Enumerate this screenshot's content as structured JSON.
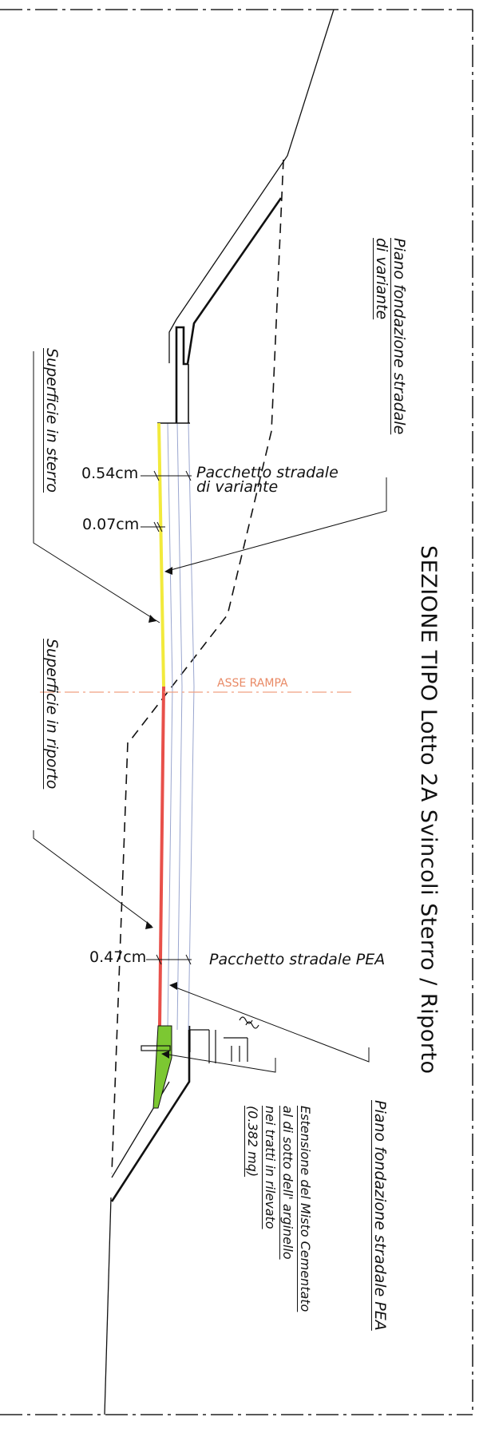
{
  "title": "SEZIONE TIPO Lotto 2A Svincoli    Sterro / Riporto",
  "labels": {
    "piano_variante": "Piano fondazione stradale\ndi variante",
    "superficie_sterro": "Superficie in sterro",
    "superficie_riporto": "Superficie in riporto",
    "pacchetto_variante": "Pacchetto stradale\ndi variante",
    "pacchetto_pea": "Pacchetto stradale PEA",
    "piano_pea": "Piano fondazione stradale PEA",
    "estensione": "Estensione del Misto Cementato\nal di sotto dell' arginello\nnei tratti in rilevato\n(0.382 mq)",
    "asse_rampa": "ASSE RAMPA"
  },
  "dimensions": {
    "d1": "0.54cm",
    "d2": "0.07cm",
    "d3": "0.47cm"
  },
  "colors": {
    "sterro_layer": "#f2ea3c",
    "riporto_layer": "#e8504a",
    "misto_cementato": "#7cc832",
    "pavement_layers": "#9aa6cf",
    "axis_line": "#f0a080",
    "lines": "#111111"
  }
}
